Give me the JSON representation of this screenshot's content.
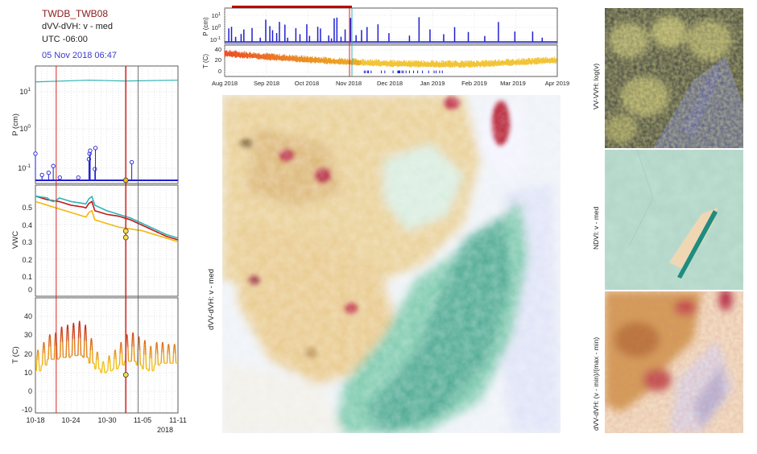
{
  "header": {
    "station": "TWDB_TWB08",
    "product": "dVV-dVH: v - med",
    "timezone": "UTC -06:00",
    "datetime": "05 Nov 2018 06:47"
  },
  "colors": {
    "station": "#8b1a1a",
    "datetime": "#3a3acc",
    "precip": "#1f1fd0",
    "cursor": "#d42020",
    "vwc1": "#c21a1a",
    "vwc2": "#2eb4b8",
    "vwc3": "#f2b90f"
  },
  "left_panels": {
    "x_ticks": [
      "10-18",
      "10-24",
      "10-30",
      "11-05",
      "11-11"
    ],
    "x_year": "2018",
    "p_ylabel": "P (cm)",
    "p_ticks": [
      "10",
      "10",
      "10"
    ],
    "p_tick_exps": [
      "1",
      "0",
      "-1"
    ],
    "vwc_ylabel": "VWC",
    "vwc_ticks": [
      "0.5",
      "0.4",
      "0.3",
      "0.2",
      "0.1",
      "0"
    ],
    "t_ylabel": "T (C)",
    "t_ticks": [
      "40",
      "30",
      "20",
      "10",
      "0",
      "-10"
    ]
  },
  "top_panel": {
    "p_ylabel": "P (cm)",
    "p_ticks": [
      "10",
      "10",
      "10"
    ],
    "p_tick_exps": [
      "1",
      "0",
      "-1"
    ],
    "t_ylabel": "T (C)",
    "t_ticks": [
      "40",
      "20",
      "0"
    ],
    "x_ticks": [
      "Aug 2018",
      "Sep 2018",
      "Oct 2018",
      "Nov 2018",
      "Dec 2018",
      "Jan 2019",
      "Feb 2019",
      "Mar 2019",
      "Apr 2019"
    ]
  },
  "map_labels": {
    "center": "dVV-dVH: v - med",
    "right_top": "VV-VVH: log(v)",
    "right_mid": "NDVI: v - med",
    "right_bot": "dVV-dVH: (v - min)/(max - min)"
  },
  "chart_data": [
    {
      "type": "line",
      "title": "",
      "ylabel": "P (cm)",
      "yscale": "log",
      "ylim": [
        0.05,
        30
      ],
      "x_start": "2018-10-18",
      "x_end": "2018-11-11",
      "series": [
        {
          "values_x": [
            "2018-10-18",
            "2018-10-27",
            "2018-11-02",
            "2018-11-11"
          ],
          "values": [
            18,
            20,
            19,
            20
          ]
        }
      ],
      "stems": [
        {
          "x": "2018-10-18",
          "y": 0.25
        },
        {
          "x": "2018-10-19",
          "y": 0.07
        },
        {
          "x": "2018-10-20",
          "y": 0.08
        },
        {
          "x": "2018-10-21",
          "y": 0.12
        },
        {
          "x": "2018-10-22",
          "y": 0.06
        },
        {
          "x": "2018-10-25",
          "y": 0.06
        },
        {
          "x": "2018-10-27",
          "y": 0.18
        },
        {
          "x": "2018-10-27",
          "y": 0.25
        },
        {
          "x": "2018-10-27",
          "y": 0.3
        },
        {
          "x": "2018-10-28",
          "y": 0.1
        },
        {
          "x": "2018-10-28",
          "y": 0.35
        },
        {
          "x": "2018-11-03",
          "y": 0.15
        }
      ]
    },
    {
      "type": "line",
      "ylabel": "VWC",
      "ylim": [
        -0.05,
        0.55
      ],
      "x": [
        "2018-10-18",
        "2018-10-20",
        "2018-10-22",
        "2018-10-24",
        "2018-10-26",
        "2018-10-28",
        "2018-10-30",
        "2018-11-01",
        "2018-11-03",
        "2018-11-05",
        "2018-11-07",
        "2018-11-09",
        "2018-11-11"
      ],
      "series": [
        {
          "values": [
            0.49,
            0.47,
            0.46,
            0.44,
            0.43,
            0.41,
            0.39,
            0.38,
            0.36,
            0.33,
            0.3,
            0.27,
            0.25
          ]
        },
        {
          "values": [
            0.49,
            0.48,
            0.48,
            0.46,
            0.45,
            0.44,
            0.41,
            0.39,
            0.37,
            0.34,
            0.31,
            0.28,
            0.26
          ]
        },
        {
          "values": [
            0.46,
            0.44,
            0.42,
            0.4,
            0.38,
            0.36,
            0.34,
            0.32,
            0.31,
            0.3,
            0.28,
            0.26,
            0.24
          ]
        }
      ]
    },
    {
      "type": "line",
      "ylabel": "T (C)",
      "ylim": [
        -12,
        47
      ],
      "x_start": "2018-10-18",
      "x_end": "2018-11-11",
      "diurnal": {
        "base": [
          9,
          12,
          15,
          15,
          16,
          16,
          17,
          17,
          16,
          13,
          10,
          8,
          9,
          10,
          12,
          14,
          14,
          12,
          10,
          9,
          12,
          13,
          13,
          13
        ],
        "amp": [
          11,
          12,
          13,
          14,
          16,
          17,
          17,
          18,
          17,
          13,
          9,
          6,
          8,
          10,
          12,
          14,
          15,
          15,
          15,
          13,
          12,
          11,
          10,
          10
        ]
      },
      "marker": {
        "x": "2018-11-05",
        "y": 7
      }
    },
    {
      "type": "bar",
      "ylabel": "P (cm)",
      "yscale": "log",
      "x_start": "2018-08-01",
      "x_end": "2019-04-01"
    },
    {
      "type": "line",
      "ylabel": "T (C)",
      "ylim": [
        -10,
        45
      ],
      "x_start": "2018-08-01",
      "x_end": "2019-04-01"
    }
  ]
}
